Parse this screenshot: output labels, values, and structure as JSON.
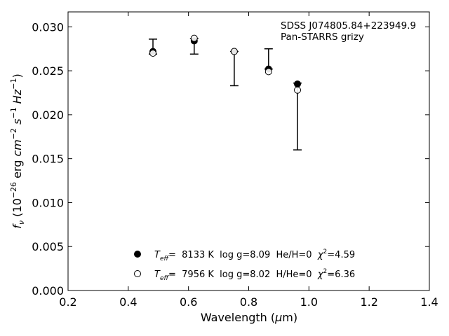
{
  "chart_data": {
    "type": "scatter",
    "xlabel": "Wavelength (μm)",
    "ylabel": "f_ν (10^−26 erg cm^−2 s^−1 Hz^−1)",
    "xlim": [
      0.2,
      1.4
    ],
    "ylim": [
      0.0,
      0.0317
    ],
    "xticks": [
      0.2,
      0.4,
      0.6,
      0.8,
      1.0,
      1.2,
      1.4
    ],
    "xtick_labels": [
      "0.2",
      "0.4",
      "0.6",
      "0.8",
      "1.0",
      "1.2",
      "1.4"
    ],
    "yticks": [
      0.0,
      0.005,
      0.01,
      0.015,
      0.02,
      0.025,
      0.03
    ],
    "ytick_labels": [
      "0.000",
      "0.005",
      "0.010",
      "0.015",
      "0.020",
      "0.025",
      "0.030"
    ],
    "grid": false,
    "annotation_lines": [
      "SDSS J074805.84+223949.9",
      "Pan-STARRS grizy"
    ],
    "observed": {
      "x": [
        0.482,
        0.619,
        0.752,
        0.866,
        0.962
      ],
      "y": [
        0.02715,
        0.02855,
        0.0272,
        0.0254,
        0.0234
      ],
      "yerr_low": [
        0.00025,
        0.00165,
        0.0039,
        0.0002,
        0.0074
      ],
      "yerr_high": [
        0.00145,
        0.0001,
        0.0,
        0.0021,
        0.0002
      ]
    },
    "series": [
      {
        "name": "T_eff= 8133 K log g=8.09 He/H=0 χ²=4.59",
        "marker": "filled-circle",
        "x": [
          0.482,
          0.619,
          0.752,
          0.866,
          0.962
        ],
        "y": [
          0.0272,
          0.0284,
          0.0272,
          0.0252,
          0.0235
        ]
      },
      {
        "name": "T_eff= 7956 K log g=8.02 H/He=0 χ²=6.36",
        "marker": "open-circle",
        "x": [
          0.482,
          0.619,
          0.752,
          0.866,
          0.962
        ],
        "y": [
          0.027,
          0.0287,
          0.0272,
          0.0249,
          0.0228
        ]
      }
    ],
    "legend_placement": "lower-center",
    "legend_entries": [
      {
        "marker": "filled-circle",
        "teff_label": "T",
        "teff_sub": "eff",
        "teff_value": "=  8133 K",
        "logg": "log g=8.09",
        "comp": "He/H=0",
        "chi_label": "χ",
        "chi_sup": "2",
        "chi_value": "=4.59"
      },
      {
        "marker": "open-circle",
        "teff_label": "T",
        "teff_sub": "eff",
        "teff_value": "=  7956 K",
        "logg": "log g=8.02",
        "comp": "H/He=0",
        "chi_label": "χ",
        "chi_sup": "2",
        "chi_value": "=6.36"
      }
    ]
  }
}
